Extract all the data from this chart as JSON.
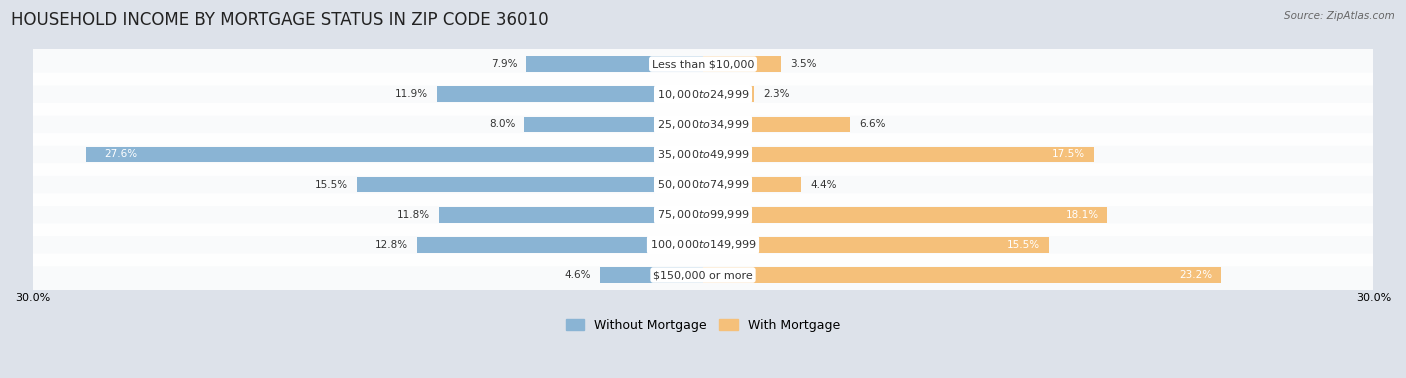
{
  "title": "HOUSEHOLD INCOME BY MORTGAGE STATUS IN ZIP CODE 36010",
  "source": "Source: ZipAtlas.com",
  "categories": [
    "Less than $10,000",
    "$10,000 to $24,999",
    "$25,000 to $34,999",
    "$35,000 to $49,999",
    "$50,000 to $74,999",
    "$75,000 to $99,999",
    "$100,000 to $149,999",
    "$150,000 or more"
  ],
  "without_mortgage": [
    7.9,
    11.9,
    8.0,
    27.6,
    15.5,
    11.8,
    12.8,
    4.6
  ],
  "with_mortgage": [
    3.5,
    2.3,
    6.6,
    17.5,
    4.4,
    18.1,
    15.5,
    23.2
  ],
  "color_without": "#8ab4d4",
  "color_with": "#f5c07a",
  "axis_limit": 30.0,
  "background_color": "#e8eaf0",
  "title_fontsize": 12,
  "label_fontsize": 8,
  "bar_label_fontsize": 7.5,
  "legend_fontsize": 9
}
